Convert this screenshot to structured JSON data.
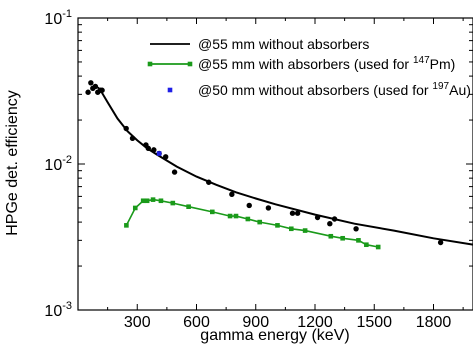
{
  "chart_data": {
    "type": "scatter",
    "yscale": "log",
    "xlim": [
      0,
      2000
    ],
    "ylim": [
      0.001,
      0.1
    ],
    "xlabel": "gamma energy (keV)",
    "ylabel": "HPGe det. efficiency",
    "x_ticks": [
      300,
      600,
      900,
      1200,
      1500,
      1800
    ],
    "x_tick_labels": [
      "300",
      "600",
      "900",
      "1200",
      "1500",
      "1800"
    ],
    "y_ticks": [
      0.001,
      0.01,
      0.1
    ],
    "y_tick_labels": [
      {
        "base": "10",
        "exp": "-3"
      },
      {
        "base": "10",
        "exp": "-2"
      },
      {
        "base": "10",
        "exp": "-1"
      }
    ],
    "legend": {
      "position": "top-right",
      "entries": [
        {
          "label_pre": "@55 mm without absorbers",
          "sup": "",
          "label_post": "",
          "marker": "line",
          "color": "#000000"
        },
        {
          "label_pre": "@55 mm with absorbers (used for ",
          "sup": "147",
          "label_post": "Pm)",
          "marker": "line-square",
          "color": "#1a9a1a"
        },
        {
          "label_pre": "@50 mm without absorbers (used for ",
          "sup": "197",
          "label_post": "Au)",
          "marker": "square",
          "color": "#1f1fe6"
        }
      ]
    },
    "series": [
      {
        "kind": "points",
        "color": "#000000",
        "x": [
          51,
          65,
          75,
          88,
          100,
          113,
          122,
          244,
          276,
          344,
          356,
          384,
          411,
          444,
          489,
          662,
          779,
          867,
          964,
          1086,
          1112,
          1213,
          1275,
          1299,
          1408,
          1836
        ],
        "y": [
          0.031,
          0.036,
          0.033,
          0.034,
          0.031,
          0.032,
          0.032,
          0.0175,
          0.015,
          0.0135,
          0.0128,
          0.0125,
          0.0118,
          0.0112,
          0.0088,
          0.0075,
          0.0062,
          0.0052,
          0.005,
          0.0046,
          0.0046,
          0.0043,
          0.0039,
          0.0042,
          0.0036,
          0.0029
        ]
      },
      {
        "kind": "fit",
        "color": "#000000",
        "x": [
          100,
          120,
          150,
          200,
          250,
          300,
          350,
          400,
          500,
          600,
          700,
          800,
          900,
          1000,
          1200,
          1400,
          1600,
          1800,
          2000
        ],
        "y": [
          0.0335,
          0.031,
          0.0265,
          0.0205,
          0.0168,
          0.0145,
          0.0128,
          0.0116,
          0.0096,
          0.0082,
          0.0072,
          0.0064,
          0.0058,
          0.0053,
          0.0045,
          0.0039,
          0.0035,
          0.0031,
          0.0028
        ]
      },
      {
        "kind": "line-markers",
        "color": "#1a9a1a",
        "x": [
          245,
          290,
          330,
          350,
          380,
          420,
          480,
          560,
          680,
          770,
          800,
          860,
          920,
          1010,
          1080,
          1150,
          1280,
          1340,
          1420,
          1460,
          1520
        ],
        "y": [
          0.0038,
          0.005,
          0.0056,
          0.0056,
          0.0057,
          0.0056,
          0.0054,
          0.0051,
          0.0047,
          0.0044,
          0.0044,
          0.0042,
          0.004,
          0.0038,
          0.0036,
          0.0035,
          0.0032,
          0.0031,
          0.003,
          0.0028,
          0.0027
        ]
      },
      {
        "kind": "points-square",
        "color": "#1f1fe6",
        "x": [
          411
        ],
        "y": [
          0.0118
        ]
      }
    ]
  }
}
